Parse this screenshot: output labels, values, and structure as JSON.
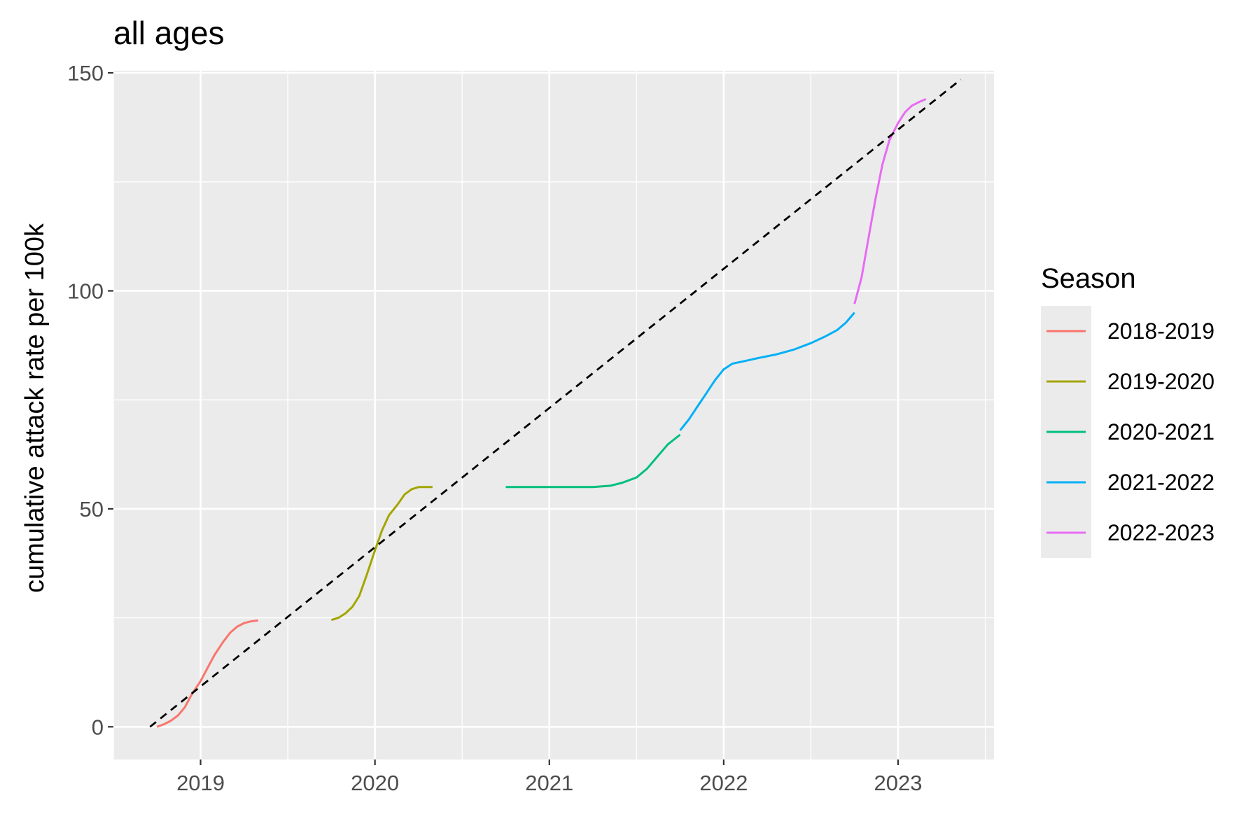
{
  "chart_data": {
    "type": "line",
    "title": "all ages",
    "xlabel": "",
    "ylabel": "cumulative attack rate per 100k",
    "x_ticks": [
      "2019",
      "2020",
      "2021",
      "2022",
      "2023"
    ],
    "y_ticks": [
      "0",
      "50",
      "100",
      "150"
    ],
    "xlim": [
      2018.5,
      2023.55
    ],
    "ylim": [
      -7.5,
      150.5
    ],
    "grid": true,
    "legend_position": "right",
    "legend_title": "Season",
    "series": [
      {
        "name": "2018-2019",
        "color": "#F8766D",
        "x": [
          2018.75,
          2018.79,
          2018.83,
          2018.87,
          2018.91,
          2018.95,
          2019.0,
          2019.04,
          2019.08,
          2019.13,
          2019.17,
          2019.21,
          2019.25,
          2019.29,
          2019.33
        ],
        "y": [
          0,
          0.6,
          1.4,
          2.6,
          4.5,
          7.5,
          10.5,
          13.5,
          16.5,
          19.5,
          21.6,
          23.0,
          23.8,
          24.2,
          24.4
        ]
      },
      {
        "name": "2019-2020",
        "color": "#A3A500",
        "x": [
          2019.75,
          2019.79,
          2019.83,
          2019.87,
          2019.91,
          2019.95,
          2020.0,
          2020.04,
          2020.08,
          2020.13,
          2020.17,
          2020.21,
          2020.25,
          2020.29,
          2020.33
        ],
        "y": [
          24.5,
          25.0,
          26.0,
          27.5,
          30.0,
          34.5,
          40.5,
          45.0,
          48.5,
          51.0,
          53.3,
          54.5,
          55.0,
          55.0,
          55.0
        ]
      },
      {
        "name": "2020-2021",
        "color": "#00BF7D",
        "x": [
          2020.75,
          2020.85,
          2020.95,
          2021.05,
          2021.15,
          2021.25,
          2021.35,
          2021.42,
          2021.5,
          2021.56,
          2021.62,
          2021.68,
          2021.75
        ],
        "y": [
          55.0,
          55.0,
          55.0,
          55.0,
          55.0,
          55.0,
          55.3,
          56.0,
          57.2,
          59.2,
          62.0,
          64.8,
          67.0
        ]
      },
      {
        "name": "2021-2022",
        "color": "#00B0F6",
        "x": [
          2021.75,
          2021.8,
          2021.85,
          2021.9,
          2021.95,
          2022.0,
          2022.05,
          2022.12,
          2022.2,
          2022.3,
          2022.4,
          2022.5,
          2022.58,
          2022.65,
          2022.7,
          2022.75
        ],
        "y": [
          68.0,
          70.5,
          73.5,
          76.5,
          79.5,
          82.0,
          83.3,
          83.9,
          84.6,
          85.4,
          86.5,
          88.0,
          89.5,
          91.0,
          92.7,
          95.0
        ]
      },
      {
        "name": "2022-2023",
        "color": "#E76BF3",
        "x": [
          2022.75,
          2022.79,
          2022.83,
          2022.87,
          2022.91,
          2022.95,
          2023.0,
          2023.04,
          2023.08,
          2023.12,
          2023.16
        ],
        "y": [
          97.0,
          103.0,
          112.0,
          121.0,
          129.0,
          134.5,
          138.5,
          141.0,
          142.5,
          143.3,
          144.0
        ]
      }
    ],
    "reference_line": {
      "style": "dashed",
      "color": "#000000",
      "x": [
        2018.71,
        2023.36
      ],
      "y": [
        0,
        148.5
      ]
    }
  }
}
